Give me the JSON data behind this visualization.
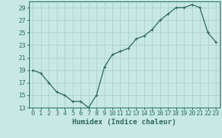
{
  "x": [
    0,
    1,
    2,
    3,
    4,
    5,
    6,
    7,
    8,
    9,
    10,
    11,
    12,
    13,
    14,
    15,
    16,
    17,
    18,
    19,
    20,
    21,
    22,
    23
  ],
  "y": [
    19,
    18.5,
    17,
    15.5,
    15,
    14,
    14,
    13,
    15,
    19.5,
    21.5,
    22,
    22.5,
    24,
    24.5,
    25.5,
    27,
    28,
    29,
    29,
    29.5,
    29,
    25,
    23.5
  ],
  "line_color": "#2d6b5e",
  "marker": "+",
  "marker_color": "#2d6b5e",
  "bg_color": "#c8e8e5",
  "grid_color": "#b0d0cd",
  "axis_color": "#2d6b5e",
  "xlabel": "Humidex (Indice chaleur)",
  "ylim": [
    13,
    30
  ],
  "xlim": [
    -0.5,
    23.5
  ],
  "yticks": [
    13,
    15,
    17,
    19,
    21,
    23,
    25,
    27,
    29
  ],
  "xticks": [
    0,
    1,
    2,
    3,
    4,
    5,
    6,
    7,
    8,
    9,
    10,
    11,
    12,
    13,
    14,
    15,
    16,
    17,
    18,
    19,
    20,
    21,
    22,
    23
  ],
  "xlabel_fontsize": 7.5,
  "tick_fontsize": 6.5,
  "line_width": 1.0,
  "marker_size": 3.5
}
